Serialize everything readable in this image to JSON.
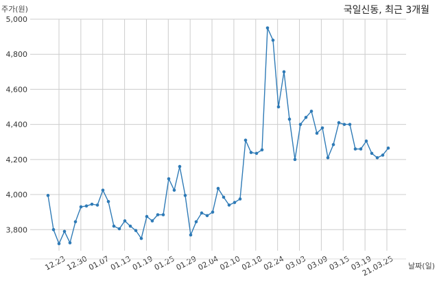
{
  "chart_data": {
    "type": "line",
    "title": "국일신동, 최근 3개월",
    "ylabel": "주가(원)",
    "xlabel": "날짜(일)",
    "ylim": [
      3680,
      5000
    ],
    "y_ticks": [
      3800,
      4000,
      4200,
      4400,
      4600,
      4800,
      5000
    ],
    "y_tick_labels": [
      "3,800",
      "4,000",
      "4,200",
      "4,400",
      "4,600",
      "4,800",
      "5,000"
    ],
    "x_tick_labels": [
      "12.23",
      "12.30",
      "01.07",
      "01.13",
      "01.19",
      "01.25",
      "01.29",
      "02.04",
      "02.10",
      "02.18",
      "02.24",
      "03.03",
      "03.09",
      "03.15",
      "03.19",
      "21.03.25"
    ],
    "grid": true,
    "line_color": "#2e7ab6",
    "series": [
      {
        "values": [
          3995,
          3800,
          3720,
          3790,
          3725,
          3845,
          3930,
          3935,
          3945,
          3940,
          4025,
          3960,
          3820,
          3805,
          3850,
          3820,
          3795,
          3750,
          3875,
          3850,
          3885,
          3885,
          4090,
          4025,
          4160,
          3995,
          3770,
          3845,
          3895,
          3880,
          3900,
          4035,
          3985,
          3940,
          3955,
          3975,
          4310,
          4240,
          4235,
          4255,
          4950,
          4880,
          4500,
          4700,
          4430,
          4200,
          4400,
          4440,
          4475,
          4350,
          4380,
          4210,
          4285,
          4410,
          4400,
          4400,
          4260,
          4260,
          4305,
          4235,
          4210,
          4225,
          4265
        ]
      }
    ]
  }
}
